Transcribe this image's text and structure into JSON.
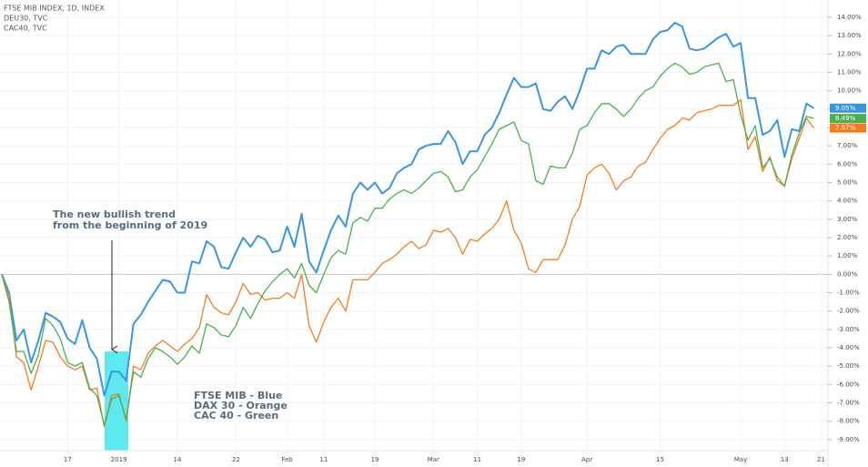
{
  "chart_data": {
    "type": "line",
    "categories": [
      null,
      null,
      null,
      null,
      null,
      null,
      null,
      null,
      null,
      "17",
      null,
      null,
      null,
      null,
      null,
      null,
      "2019",
      null,
      null,
      null,
      null,
      null,
      null,
      null,
      "14",
      null,
      null,
      null,
      null,
      null,
      null,
      null,
      "22",
      null,
      null,
      null,
      null,
      null,
      null,
      "Feb",
      null,
      null,
      null,
      null,
      "11",
      null,
      null,
      null,
      null,
      null,
      null,
      "19",
      null,
      null,
      null,
      null,
      null,
      null,
      null,
      "Mar",
      null,
      null,
      null,
      null,
      null,
      "11",
      null,
      null,
      null,
      null,
      null,
      "19",
      null,
      null,
      null,
      null,
      null,
      null,
      null,
      null,
      "Apr",
      null,
      null,
      null,
      null,
      null,
      null,
      null,
      null,
      null,
      "15",
      null,
      null,
      null,
      null,
      null,
      null,
      null,
      null,
      null,
      null,
      "May",
      null,
      null,
      null,
      null,
      null,
      "13",
      null,
      null,
      null,
      null,
      "21"
    ],
    "series": [
      {
        "name": "FTSE MIB INDEX, 1D, INDEX",
        "color": "#3a96dd",
        "values": [
          0,
          -1.0,
          -3.6,
          -3.0,
          -4.8,
          -3.6,
          -2.1,
          -2.3,
          -2.6,
          -3.5,
          -3.8,
          -2.5,
          -4.0,
          -4.6,
          -6.6,
          -5.3,
          -5.3,
          -5.8,
          -2.7,
          -2.2,
          -1.5,
          -0.9,
          -0.3,
          -0.4,
          -1.0,
          -1.0,
          0.7,
          0.6,
          1.8,
          1.5,
          0.4,
          0.3,
          1.2,
          2.0,
          1.5,
          2.1,
          1.9,
          1.2,
          1.3,
          2.6,
          1.5,
          3.3,
          0.7,
          0.1,
          1.3,
          2.4,
          3.2,
          2.6,
          4.4,
          5.0,
          4.6,
          5.0,
          4.4,
          4.7,
          5.5,
          5.8,
          6.0,
          6.8,
          7.0,
          7.1,
          7.1,
          7.8,
          7.2,
          6.0,
          6.7,
          6.7,
          7.6,
          8.0,
          8.8,
          9.8,
          10.7,
          10.2,
          10.2,
          10.4,
          9.0,
          8.9,
          9.4,
          9.7,
          9.0,
          10.0,
          11.2,
          11.2,
          12.2,
          12.0,
          12.4,
          12.5,
          12.0,
          12.0,
          12.0,
          12.8,
          13.2,
          13.3,
          13.7,
          13.5,
          12.3,
          12.2,
          12.3,
          12.6,
          12.9,
          13.1,
          12.4,
          12.6,
          9.6,
          9.6,
          7.6,
          7.8,
          8.4,
          6.4,
          7.9,
          7.8,
          9.3,
          9.05,
          null
        ],
        "value_labels": [
          null,
          null,
          null,
          null,
          null,
          null,
          null,
          null,
          null,
          null,
          null,
          null,
          null,
          null,
          null,
          null,
          null,
          null,
          null,
          null,
          null,
          null,
          null,
          null,
          null,
          null,
          null,
          null,
          null,
          null,
          null,
          null,
          null,
          null,
          null,
          null,
          null,
          null,
          null,
          null,
          null,
          null,
          null,
          null,
          null,
          null,
          null,
          null,
          null,
          null,
          null,
          null,
          null,
          null,
          null,
          null,
          null,
          null,
          null,
          null,
          null,
          null,
          null,
          null,
          null,
          null,
          null,
          null,
          null,
          null,
          null,
          null,
          null,
          null,
          null,
          null,
          null,
          null,
          null,
          null,
          null,
          null,
          null,
          null,
          null,
          null,
          null,
          null,
          null,
          null,
          null,
          null,
          null,
          null,
          null,
          null,
          null,
          null,
          null,
          null,
          null,
          null,
          null,
          null,
          null,
          null,
          null,
          null,
          null,
          null,
          null,
          "9.05%",
          null
        ]
      },
      {
        "name": "DEU30, TVC",
        "color": "#f57d1f",
        "values": [
          0,
          -1.2,
          -4.5,
          -4.8,
          -6.3,
          -5.0,
          -3.6,
          -3.7,
          -4.5,
          -5.0,
          -5.2,
          -5.0,
          -6.3,
          -6.2,
          -8.3,
          -6.6,
          -6.5,
          -8.0,
          -5.0,
          -5.2,
          -4.3,
          -3.9,
          -3.6,
          -3.9,
          -4.2,
          -3.8,
          -3.5,
          -2.9,
          -1.1,
          -1.8,
          -2.1,
          -2.2,
          -1.5,
          -0.5,
          -1.1,
          -1.0,
          -1.4,
          -1.3,
          -1.3,
          -1.0,
          -1.3,
          0.0,
          -2.8,
          -3.7,
          -2.6,
          -1.8,
          -1.3,
          -2.0,
          -0.3,
          -0.3,
          -0.3,
          0.1,
          0.6,
          0.8,
          1.1,
          1.5,
          1.8,
          1.4,
          1.6,
          2.4,
          2.3,
          2.5,
          2.0,
          1.1,
          1.9,
          1.8,
          2.2,
          2.5,
          3.0,
          4.0,
          2.4,
          1.7,
          0.3,
          0.1,
          0.8,
          0.8,
          0.8,
          1.6,
          3.0,
          3.7,
          5.4,
          5.8,
          6.0,
          5.5,
          4.6,
          5.1,
          5.3,
          5.9,
          6.1,
          6.8,
          7.4,
          7.9,
          8.1,
          8.5,
          8.4,
          8.8,
          8.9,
          9.0,
          9.2,
          9.2,
          9.2,
          9.5,
          6.8,
          7.5,
          5.6,
          6.4,
          5.1,
          4.8,
          6.3,
          7.4,
          8.5,
          7.97,
          null
        ],
        "value_labels": [
          null,
          null,
          null,
          null,
          null,
          null,
          null,
          null,
          null,
          null,
          null,
          null,
          null,
          null,
          null,
          null,
          null,
          null,
          null,
          null,
          null,
          null,
          null,
          null,
          null,
          null,
          null,
          null,
          null,
          null,
          null,
          null,
          null,
          null,
          null,
          null,
          null,
          null,
          null,
          null,
          null,
          null,
          null,
          null,
          null,
          null,
          null,
          null,
          null,
          null,
          null,
          null,
          null,
          null,
          null,
          null,
          null,
          null,
          null,
          null,
          null,
          null,
          null,
          null,
          null,
          null,
          null,
          null,
          null,
          null,
          null,
          null,
          null,
          null,
          null,
          null,
          null,
          null,
          null,
          null,
          null,
          null,
          null,
          null,
          null,
          null,
          null,
          null,
          null,
          null,
          null,
          null,
          null,
          null,
          null,
          null,
          null,
          null,
          null,
          null,
          null,
          null,
          null,
          null,
          null,
          null,
          null,
          null,
          null,
          null,
          null,
          "7.97%",
          null
        ]
      },
      {
        "name": "CAC40, TVC",
        "color": "#4caf50",
        "values": [
          0,
          -1.5,
          -4.2,
          -4.2,
          -5.4,
          -4.4,
          -2.4,
          -2.8,
          -3.5,
          -4.8,
          -5.0,
          -4.8,
          -6.2,
          -6.6,
          -8.2,
          -6.8,
          -6.6,
          -7.9,
          -5.3,
          -5.6,
          -4.6,
          -4.0,
          -4.2,
          -4.5,
          -4.9,
          -4.5,
          -3.9,
          -4.3,
          -2.7,
          -2.9,
          -3.3,
          -3.4,
          -2.8,
          -1.8,
          -2.4,
          -1.6,
          -0.9,
          -0.4,
          0.0,
          0.3,
          -0.2,
          0.6,
          -0.6,
          -1.0,
          0.0,
          0.9,
          1.3,
          1.1,
          2.8,
          3.1,
          2.9,
          3.6,
          3.6,
          4.1,
          4.4,
          4.6,
          4.4,
          4.7,
          5.1,
          5.5,
          5.6,
          5.3,
          4.5,
          4.6,
          5.3,
          5.7,
          6.4,
          7.1,
          7.9,
          8.1,
          8.3,
          7.3,
          7.1,
          5.1,
          4.9,
          5.9,
          5.8,
          5.8,
          6.6,
          7.9,
          8.1,
          8.8,
          9.3,
          9.3,
          9.0,
          8.6,
          9.0,
          9.6,
          10.0,
          10.2,
          10.8,
          11.2,
          11.5,
          11.3,
          10.9,
          11.0,
          11.3,
          11.4,
          11.5,
          10.5,
          10.6,
          8.7,
          7.3,
          8.1,
          5.8,
          6.3,
          5.3,
          4.8,
          6.5,
          7.7,
          8.6,
          8.49,
          null
        ],
        "value_labels": [
          null,
          null,
          null,
          null,
          null,
          null,
          null,
          null,
          null,
          null,
          null,
          null,
          null,
          null,
          null,
          null,
          null,
          null,
          null,
          null,
          null,
          null,
          null,
          null,
          null,
          null,
          null,
          null,
          null,
          null,
          null,
          null,
          null,
          null,
          null,
          null,
          null,
          null,
          null,
          null,
          null,
          null,
          null,
          null,
          null,
          null,
          null,
          null,
          null,
          null,
          null,
          null,
          null,
          null,
          null,
          null,
          null,
          null,
          null,
          null,
          null,
          null,
          null,
          null,
          null,
          null,
          null,
          null,
          null,
          null,
          null,
          null,
          null,
          null,
          null,
          null,
          null,
          null,
          null,
          null,
          null,
          null,
          null,
          null,
          null,
          null,
          null,
          null,
          null,
          null,
          null,
          null,
          null,
          null,
          null,
          null,
          null,
          null,
          null,
          null,
          null,
          null,
          null,
          null,
          null,
          null,
          null,
          null,
          null,
          null,
          null,
          "8.49%",
          null
        ]
      }
    ],
    "ylim": [
      -9.6,
      14.94
    ],
    "yticks": [
      {
        "value": 14,
        "label": "14.00%"
      },
      {
        "value": 13,
        "label": "13.00%"
      },
      {
        "value": 12,
        "label": "12.00%"
      },
      {
        "value": 11,
        "label": "11.00%"
      },
      {
        "value": 10,
        "label": "10.00%"
      },
      {
        "value": 9,
        "label": "9.00%"
      },
      {
        "value": 8,
        "label": "8.00%"
      },
      {
        "value": 7,
        "label": "7.00%"
      },
      {
        "value": 6,
        "label": "6.00%"
      },
      {
        "value": 5,
        "label": "5.00%"
      },
      {
        "value": 4,
        "label": "4.00%"
      },
      {
        "value": 3,
        "label": "3.00%"
      },
      {
        "value": 2,
        "label": "2.00%"
      },
      {
        "value": 1,
        "label": "1.00%"
      },
      {
        "value": 0,
        "label": "0.00%"
      },
      {
        "value": -1,
        "label": "-1.00%"
      },
      {
        "value": -2,
        "label": "-2.00%"
      },
      {
        "value": -3,
        "label": "-3.00%"
      },
      {
        "value": -4,
        "label": "-4.00%"
      },
      {
        "value": -5,
        "label": "-5.00%"
      },
      {
        "value": -6,
        "label": "-6.00%"
      },
      {
        "value": -7,
        "label": "-7.00%"
      },
      {
        "value": -8,
        "label": "-8.00%"
      },
      {
        "value": -9,
        "label": "-9.00%"
      }
    ],
    "grid": true,
    "annotations": {
      "arrow_note": [
        "The new bullish trend",
        "from the beginning of 2019"
      ],
      "key": [
        "FTSE MIB - Blue",
        "DAX 30 - Orange",
        "CAC 40 - Green"
      ]
    }
  }
}
